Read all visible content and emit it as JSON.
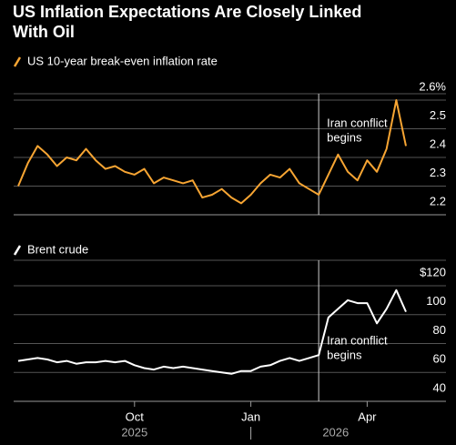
{
  "title": "US Inflation Expectations Are Closely Linked With Oil",
  "title_lines": [
    "US Inflation Expectations Are Closely Linked",
    "With Oil"
  ],
  "chart_data": [
    {
      "type": "line",
      "x": [
        "2025-07",
        "2025-07",
        "2025-07",
        "2025-07",
        "2025-08",
        "2025-08",
        "2025-08",
        "2025-08",
        "2025-09",
        "2025-09",
        "2025-09",
        "2025-09",
        "2025-10",
        "2025-10",
        "2025-10",
        "2025-10",
        "2025-11",
        "2025-11",
        "2025-11",
        "2025-11",
        "2025-12",
        "2025-12",
        "2025-12",
        "2025-12",
        "2026-01",
        "2026-01",
        "2026-01",
        "2026-01",
        "2026-02",
        "2026-02",
        "2026-02",
        "2026-02",
        "2026-03",
        "2026-03",
        "2026-03",
        "2026-03",
        "2026-04",
        "2026-04",
        "2026-04",
        "2026-04",
        "2026-05"
      ],
      "series": [
        {
          "name": "US 10-year break-even inflation rate",
          "color": "#f7a533",
          "values": [
            2.3,
            2.38,
            2.44,
            2.41,
            2.37,
            2.4,
            2.39,
            2.43,
            2.39,
            2.36,
            2.37,
            2.35,
            2.34,
            2.36,
            2.31,
            2.33,
            2.32,
            2.31,
            2.32,
            2.26,
            2.27,
            2.29,
            2.26,
            2.24,
            2.27,
            2.31,
            2.34,
            2.33,
            2.36,
            2.31,
            2.29,
            2.27,
            2.34,
            2.41,
            2.35,
            2.32,
            2.39,
            2.35,
            2.43,
            2.6,
            2.44
          ]
        }
      ],
      "ylim": [
        2.2,
        2.6
      ],
      "yticks": [
        2.2,
        2.3,
        2.4,
        2.5,
        {
          "value": 2.6,
          "label": "2.6%"
        }
      ],
      "grid": true,
      "annotation": {
        "lines": [
          "Iran conflict",
          "begins"
        ],
        "x": "2026-02"
      }
    },
    {
      "type": "line",
      "x": [
        "2025-07",
        "2025-07",
        "2025-07",
        "2025-07",
        "2025-08",
        "2025-08",
        "2025-08",
        "2025-08",
        "2025-09",
        "2025-09",
        "2025-09",
        "2025-09",
        "2025-10",
        "2025-10",
        "2025-10",
        "2025-10",
        "2025-11",
        "2025-11",
        "2025-11",
        "2025-11",
        "2025-12",
        "2025-12",
        "2025-12",
        "2025-12",
        "2026-01",
        "2026-01",
        "2026-01",
        "2026-01",
        "2026-02",
        "2026-02",
        "2026-02",
        "2026-02",
        "2026-03",
        "2026-03",
        "2026-03",
        "2026-03",
        "2026-04",
        "2026-04",
        "2026-04",
        "2026-04",
        "2026-05"
      ],
      "series": [
        {
          "name": "Brent crude",
          "color": "#ffffff",
          "values": [
            68,
            69,
            70,
            69,
            67,
            68,
            66,
            67,
            67,
            68,
            67,
            68,
            65,
            63,
            62,
            64,
            63,
            64,
            63,
            62,
            61,
            60,
            59,
            61,
            61,
            64,
            65,
            68,
            70,
            68,
            70,
            72,
            98,
            104,
            110,
            108,
            108,
            94,
            104,
            117,
            102
          ]
        }
      ],
      "ylim": [
        40,
        120
      ],
      "yticks": [
        40,
        60,
        80,
        100,
        {
          "value": 120,
          "label": "$120"
        }
      ],
      "grid": true,
      "annotation": {
        "lines": [
          "Iran conflict",
          "begins"
        ],
        "x": "2026-02"
      },
      "xticks": [
        {
          "value": "2025-10",
          "label": "Oct"
        },
        {
          "value": "2026-01",
          "label": "Jan"
        },
        {
          "value": "2026-04",
          "label": "Apr"
        }
      ],
      "year_labels": [
        {
          "value": "2025-10",
          "label": "2025"
        },
        {
          "value": "2026-03",
          "label": "2026"
        }
      ]
    }
  ]
}
